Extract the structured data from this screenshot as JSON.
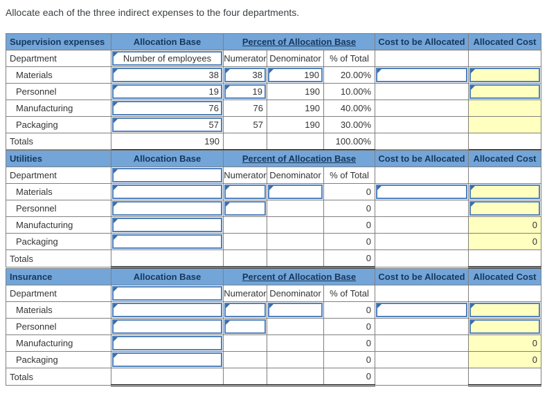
{
  "title": "Allocate each of the three indirect expenses to the four departments.",
  "colors": {
    "header_bg": "#73a5d8",
    "header_text": "#17375d",
    "input_border": "#4f81bd",
    "input_marker": "#3a6ba3",
    "answer_cell_bg": "#ffffc0",
    "grid_border": "#7f7f7f"
  },
  "labels": {
    "allocation_base": "Allocation Base",
    "percent_of_allocation_base": "Percent of Allocation Base",
    "cost_to_be_allocated": "Cost to be Allocated",
    "allocated_cost": "Allocated Cost",
    "department": "Department",
    "numerator": "Numerator",
    "denominator": "Denominator",
    "pct_of_total": "% of Total",
    "totals": "Totals"
  },
  "tables": [
    {
      "name": "Supervision expenses",
      "base_header": {
        "v": "Number of employees",
        "input": true
      },
      "rows": [
        {
          "label": "Materials",
          "base": {
            "v": "38",
            "input": true
          },
          "num": {
            "v": "38",
            "input": true
          },
          "den": {
            "v": "190",
            "input": true
          },
          "pct": {
            "v": "20.00%"
          },
          "cost": {
            "v": "",
            "input": true
          },
          "alloc": {
            "v": "",
            "input": true,
            "yellow": true
          }
        },
        {
          "label": "Personnel",
          "base": {
            "v": "19",
            "input": true
          },
          "num": {
            "v": "19",
            "input": true
          },
          "den": {
            "v": "190"
          },
          "pct": {
            "v": "10.00%"
          },
          "cost": {
            "v": ""
          },
          "alloc": {
            "v": "",
            "input": true,
            "yellow": true
          }
        },
        {
          "label": "Manufacturing",
          "base": {
            "v": "76",
            "input": true
          },
          "num": {
            "v": "76"
          },
          "den": {
            "v": "190"
          },
          "pct": {
            "v": "40.00%"
          },
          "cost": {
            "v": ""
          },
          "alloc": {
            "v": "",
            "yellow": true
          }
        },
        {
          "label": "Packaging",
          "base": {
            "v": "57",
            "input": true
          },
          "num": {
            "v": "57"
          },
          "den": {
            "v": "190"
          },
          "pct": {
            "v": "30.00%"
          },
          "cost": {
            "v": ""
          },
          "alloc": {
            "v": "",
            "yellow": true
          }
        }
      ],
      "totals": {
        "base": {
          "v": "190"
        },
        "num": {
          "v": ""
        },
        "den": {
          "v": ""
        },
        "pct": {
          "v": "100.00%"
        },
        "cost": {
          "v": ""
        },
        "alloc": {
          "v": ""
        }
      }
    },
    {
      "name": "Utilities",
      "base_header": {
        "v": "",
        "input": true
      },
      "rows": [
        {
          "label": "Materials",
          "base": {
            "v": "",
            "input": true
          },
          "num": {
            "v": "",
            "input": true
          },
          "den": {
            "v": "",
            "input": true
          },
          "pct": {
            "v": "0"
          },
          "cost": {
            "v": "",
            "input": true
          },
          "alloc": {
            "v": "",
            "input": true,
            "yellow": true
          }
        },
        {
          "label": "Personnel",
          "base": {
            "v": "",
            "input": true
          },
          "num": {
            "v": "",
            "input": true
          },
          "den": {
            "v": ""
          },
          "pct": {
            "v": "0"
          },
          "cost": {
            "v": ""
          },
          "alloc": {
            "v": "",
            "input": true,
            "yellow": true
          }
        },
        {
          "label": "Manufacturing",
          "base": {
            "v": "",
            "input": true
          },
          "num": {
            "v": ""
          },
          "den": {
            "v": ""
          },
          "pct": {
            "v": "0"
          },
          "cost": {
            "v": ""
          },
          "alloc": {
            "v": "0",
            "yellow": true
          }
        },
        {
          "label": "Packaging",
          "base": {
            "v": "",
            "input": true
          },
          "num": {
            "v": ""
          },
          "den": {
            "v": ""
          },
          "pct": {
            "v": "0"
          },
          "cost": {
            "v": ""
          },
          "alloc": {
            "v": "0",
            "yellow": true
          }
        }
      ],
      "totals": {
        "base": {
          "v": ""
        },
        "num": {
          "v": ""
        },
        "den": {
          "v": ""
        },
        "pct": {
          "v": "0"
        },
        "cost": {
          "v": ""
        },
        "alloc": {
          "v": ""
        }
      }
    },
    {
      "name": "Insurance",
      "base_header": {
        "v": "",
        "input": true
      },
      "rows": [
        {
          "label": "Materials",
          "base": {
            "v": "",
            "input": true
          },
          "num": {
            "v": "",
            "input": true
          },
          "den": {
            "v": "",
            "input": true
          },
          "pct": {
            "v": "0"
          },
          "cost": {
            "v": "",
            "input": true
          },
          "alloc": {
            "v": "",
            "input": true,
            "yellow": true
          }
        },
        {
          "label": "Personnel",
          "base": {
            "v": "",
            "input": true
          },
          "num": {
            "v": "",
            "input": true
          },
          "den": {
            "v": ""
          },
          "pct": {
            "v": "0"
          },
          "cost": {
            "v": ""
          },
          "alloc": {
            "v": "",
            "input": true,
            "yellow": true
          }
        },
        {
          "label": "Manufacturing",
          "base": {
            "v": "",
            "input": true
          },
          "num": {
            "v": ""
          },
          "den": {
            "v": ""
          },
          "pct": {
            "v": "0"
          },
          "cost": {
            "v": ""
          },
          "alloc": {
            "v": "0",
            "yellow": true
          }
        },
        {
          "label": "Packaging",
          "base": {
            "v": "",
            "input": true
          },
          "num": {
            "v": ""
          },
          "den": {
            "v": ""
          },
          "pct": {
            "v": "0"
          },
          "cost": {
            "v": ""
          },
          "alloc": {
            "v": "0",
            "yellow": true
          }
        }
      ],
      "totals": {
        "base": {
          "v": ""
        },
        "num": {
          "v": ""
        },
        "den": {
          "v": ""
        },
        "pct": {
          "v": "0"
        },
        "cost": {
          "v": ""
        },
        "alloc": {
          "v": ""
        }
      }
    }
  ]
}
